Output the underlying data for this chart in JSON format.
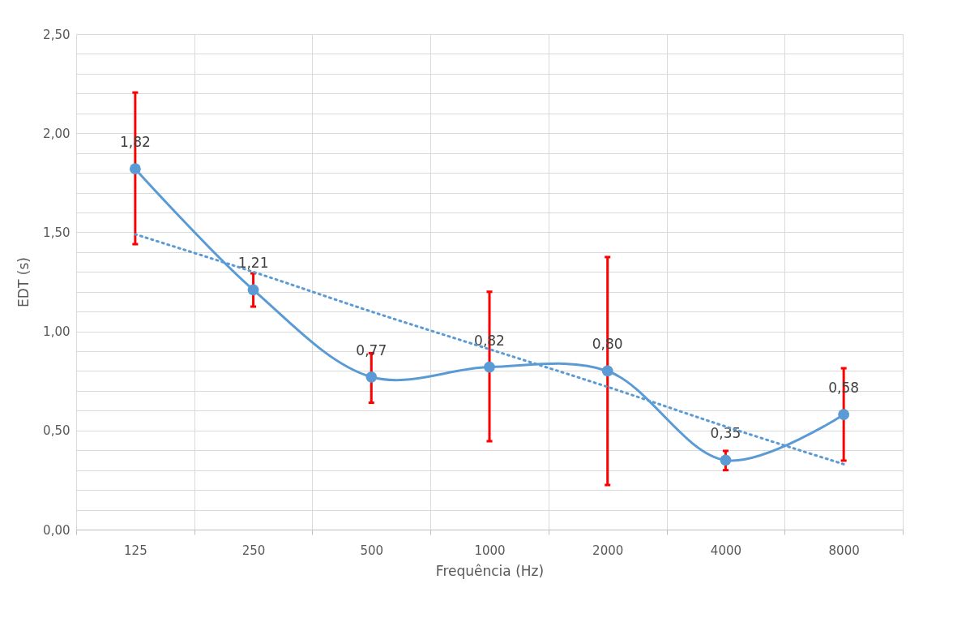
{
  "chart_data": {
    "type": "line",
    "xlabel": "Frequência (Hz)",
    "ylabel": "EDT (s)",
    "categories": [
      "125",
      "250",
      "500",
      "1000",
      "2000",
      "4000",
      "8000"
    ],
    "series": [
      {
        "color": "#5b9bd5",
        "marker": "circle",
        "line_style": "solid",
        "values": [
          1.82,
          1.21,
          0.77,
          0.82,
          0.8,
          0.35,
          0.58
        ],
        "value_labels": [
          "1,82",
          "1,21",
          "0,77",
          "0,82",
          "0,80",
          "0,35",
          "0,58"
        ],
        "errors": [
          [
            1.44,
            2.205
          ],
          [
            1.125,
            1.293
          ],
          [
            0.64,
            0.89
          ],
          [
            0.446,
            1.2
          ],
          [
            0.225,
            1.375
          ],
          [
            0.3,
            0.397
          ],
          [
            0.348,
            0.814
          ]
        ]
      },
      {
        "color": "#5b9bd5",
        "marker": "none",
        "line_style": "dotted",
        "values": [
          1.49,
          1.3,
          1.1,
          0.91,
          0.72,
          0.52,
          0.33
        ]
      }
    ],
    "ylim": [
      0,
      2.5
    ],
    "yticks": [
      {
        "value": 0,
        "label": "0,00"
      },
      {
        "value": 0.1,
        "label": null
      },
      {
        "value": 0.2,
        "label": null
      },
      {
        "value": 0.3,
        "label": null
      },
      {
        "value": 0.4,
        "label": null
      },
      {
        "value": 0.5,
        "label": "0,50"
      },
      {
        "value": 0.6,
        "label": null
      },
      {
        "value": 0.7,
        "label": null
      },
      {
        "value": 0.8,
        "label": null
      },
      {
        "value": 0.9,
        "label": null
      },
      {
        "value": 1,
        "label": "1,00"
      },
      {
        "value": 1.1,
        "label": null
      },
      {
        "value": 1.2,
        "label": null
      },
      {
        "value": 1.3,
        "label": null
      },
      {
        "value": 1.4,
        "label": null
      },
      {
        "value": 1.5,
        "label": "1,50"
      },
      {
        "value": 1.6,
        "label": null
      },
      {
        "value": 1.7,
        "label": null
      },
      {
        "value": 1.8,
        "label": null
      },
      {
        "value": 1.9,
        "label": null
      },
      {
        "value": 2,
        "label": "2,00"
      },
      {
        "value": 2.1,
        "label": null
      },
      {
        "value": 2.2,
        "label": null
      },
      {
        "value": 2.3,
        "label": null
      },
      {
        "value": 2.4,
        "label": null
      },
      {
        "value": 2.5,
        "label": "2,50"
      }
    ],
    "grid": true
  }
}
